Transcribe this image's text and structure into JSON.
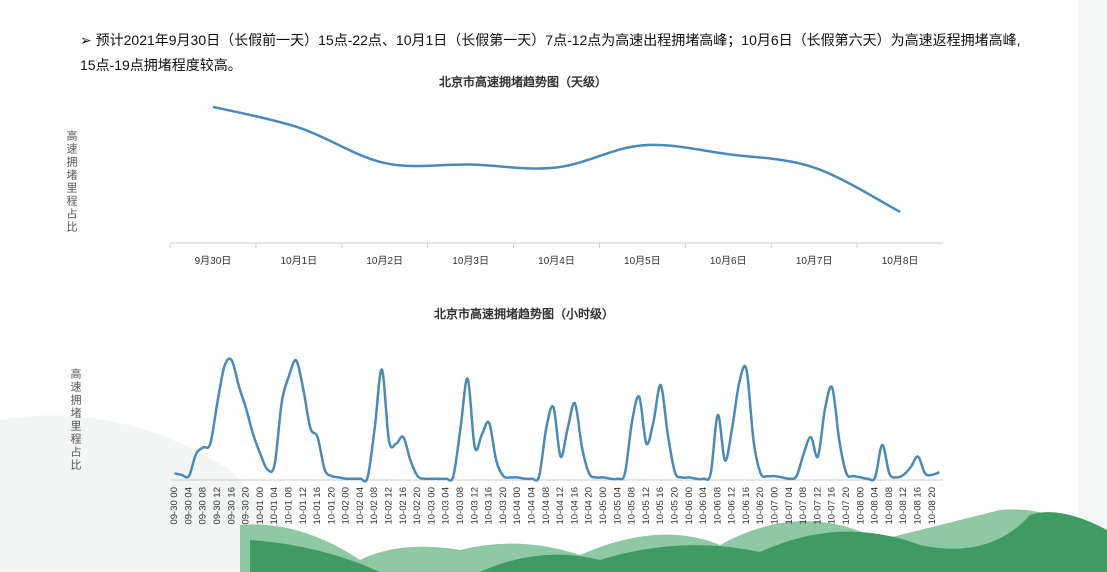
{
  "header": {
    "text": "➢ 预计2021年9月30日（长假前一天）15点-22点、10月1日（长假第一天）7点-12点为高速出程拥堵高峰；10月6日（长假第六天）为高速返程拥堵高峰, 15点-19点拥堵程度较高。"
  },
  "chart_data": [
    {
      "type": "line",
      "title": "北京市高速拥堵趋势图（天级）",
      "y_label": "高速拥堵里程占比",
      "categories": [
        "9月30日",
        "10月1日",
        "10月2日",
        "10月3日",
        "10月4日",
        "10月5日",
        "10月6日",
        "10月7日",
        "10月8日"
      ],
      "values": [
        92,
        78,
        54,
        53,
        51,
        66,
        60,
        51,
        21
      ],
      "color": "#4a8ab8",
      "ylim": [
        0,
        100
      ]
    },
    {
      "type": "line",
      "title": "北京市高速拥堵趋势图（小时级）",
      "y_label": "高速拥堵里程占比",
      "categories": [
        "09-30 00",
        null,
        "09-30 04",
        null,
        "09-30 08",
        null,
        "09-30 12",
        null,
        "09-30 16",
        null,
        "09-30 20",
        null,
        "10-01 00",
        null,
        "10-01 04",
        null,
        "10-01 08",
        null,
        "10-01 12",
        null,
        "10-01 16",
        null,
        "10-01 20",
        null,
        "10-02 00",
        null,
        "10-02 04",
        null,
        "10-02 08",
        null,
        "10-02 12",
        null,
        "10-02 16",
        null,
        "10-02 20",
        null,
        "10-03 00",
        null,
        "10-03 04",
        null,
        "10-03 08",
        null,
        "10-03 12",
        null,
        "10-03 16",
        null,
        "10-03 20",
        null,
        "10-04 00",
        null,
        "10-04 04",
        null,
        "10-04 08",
        null,
        "10-04 12",
        null,
        "10-04 16",
        null,
        "10-04 20",
        null,
        "10-05 00",
        null,
        "10-05 04",
        null,
        "10-05 08",
        null,
        "10-05 12",
        null,
        "10-05 16",
        null,
        "10-05 20",
        null,
        "10-06 00",
        null,
        "10-06 04",
        null,
        "10-06 08",
        null,
        "10-06 12",
        null,
        "10-06 16",
        null,
        "10-06 20",
        null,
        "10-07 00",
        null,
        "10-07 04",
        null,
        "10-07 08",
        null,
        "10-07 12",
        null,
        "10-07 16",
        null,
        "10-07 20",
        null,
        "10-08 00",
        null,
        "10-08 04",
        null,
        "10-08 08",
        null,
        "10-08 12",
        null,
        "10-08 16",
        null,
        "10-08 20",
        null
      ],
      "values": [
        5,
        4,
        3,
        20,
        25,
        28,
        60,
        88,
        92,
        72,
        55,
        35,
        20,
        8,
        12,
        60,
        80,
        92,
        70,
        40,
        33,
        8,
        3,
        2,
        1,
        1,
        1,
        2,
        40,
        85,
        30,
        28,
        33,
        15,
        3,
        1,
        1,
        1,
        1,
        3,
        40,
        78,
        25,
        35,
        44,
        15,
        3,
        2,
        2,
        1,
        1,
        3,
        40,
        56,
        18,
        40,
        59,
        25,
        5,
        2,
        2,
        1,
        1,
        5,
        45,
        64,
        28,
        45,
        73,
        35,
        6,
        2,
        2,
        1,
        1,
        5,
        50,
        15,
        40,
        75,
        85,
        30,
        5,
        3,
        3,
        2,
        1,
        3,
        20,
        33,
        18,
        55,
        71,
        30,
        5,
        3,
        2,
        1,
        2,
        27,
        5,
        2,
        4,
        10,
        18,
        5,
        4,
        6
      ],
      "color": "#4a8ab8",
      "ylim": [
        0,
        100
      ]
    }
  ]
}
